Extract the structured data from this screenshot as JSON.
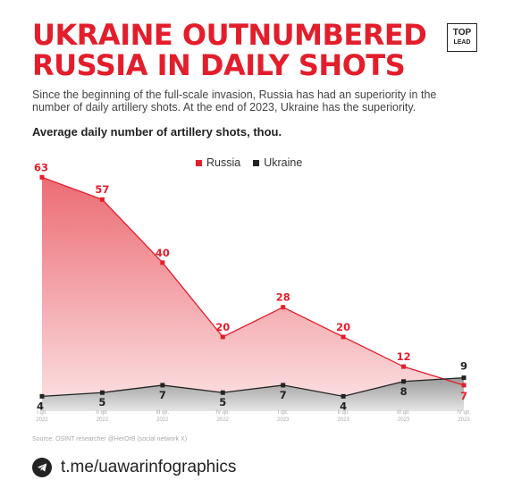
{
  "header": {
    "title_line1": "UKRAINE OUTNUMBERED",
    "title_line2": "RUSSIA IN DAILY SHOTS",
    "logo_line1": "TOP",
    "logo_line2": "LEAD",
    "subtitle_line1": "Since the beginning of the full-scale invasion, Russia has had an superiority in the",
    "subtitle_line2": "number of daily artillery shots. At the end of 2023, Ukraine has the superiority."
  },
  "source": "Source: OSINT researcher @HerOrB (social network X)",
  "footer": {
    "link": "t.me/uawarinfographics",
    "icon": "telegram-icon"
  },
  "colors": {
    "accent": "#e31e2c",
    "dark": "#222222"
  },
  "chart_data": {
    "type": "area",
    "title": "Average daily number of artillery shots, thou.",
    "categories": [
      [
        "I qtr.",
        "2022"
      ],
      [
        "II qtr.",
        "2022"
      ],
      [
        "III qtr.",
        "2022"
      ],
      [
        "IV qtr.",
        "2022"
      ],
      [
        "I qtr.",
        "2023"
      ],
      [
        "II qtr.",
        "2023"
      ],
      [
        "III qtr.",
        "2023"
      ],
      [
        "IV qtr.",
        "2023"
      ]
    ],
    "series": [
      {
        "name": "Russia",
        "color": "#e31e2c",
        "values": [
          63,
          57,
          40,
          20,
          28,
          20,
          12,
          7
        ]
      },
      {
        "name": "Ukraine",
        "color": "#222222",
        "values": [
          4,
          5,
          7,
          5,
          7,
          4,
          8,
          9
        ]
      }
    ],
    "ylim": [
      0,
      65
    ],
    "grid": false,
    "legend": "top-center"
  }
}
